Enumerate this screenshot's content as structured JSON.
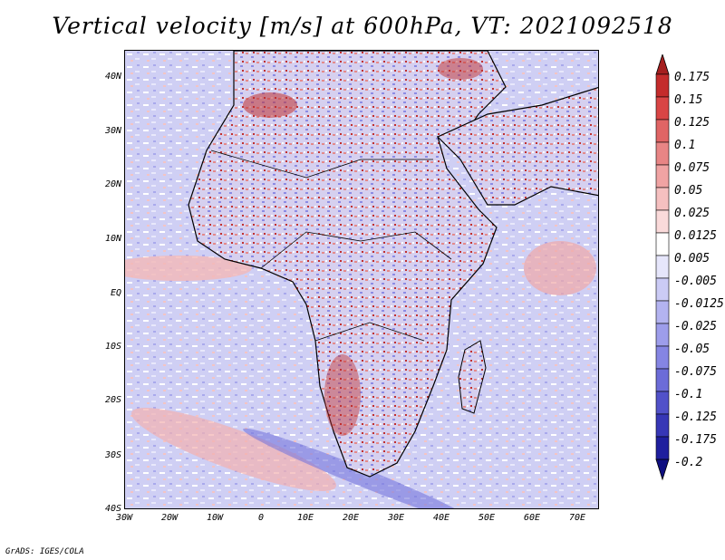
{
  "title": "Vertical velocity [m/s] at 600hPa, VT: 2021092518",
  "credit": "GrADS: IGES/COLA",
  "map": {
    "lat_labels": [
      "40N",
      "30N",
      "20N",
      "10N",
      "EQ",
      "10S",
      "20S",
      "30S",
      "40S"
    ],
    "lon_labels": [
      "30W",
      "20W",
      "10W",
      "0",
      "10E",
      "20E",
      "30E",
      "40E",
      "50E",
      "60E",
      "70E"
    ]
  },
  "colorbar": {
    "labels": [
      "0.175",
      "0.15",
      "0.125",
      "0.1",
      "0.075",
      "0.05",
      "0.025",
      "0.0125",
      "0.005",
      "-0.005",
      "-0.0125",
      "-0.025",
      "-0.05",
      "-0.075",
      "-0.1",
      "-0.125",
      "-0.175",
      "-0.2"
    ],
    "colors": [
      "#a51f1f",
      "#c42c2c",
      "#d94545",
      "#e06565",
      "#e88585",
      "#f0a3a3",
      "#f5c0c0",
      "#fadada",
      "#ffffff",
      "#e6e6fb",
      "#cbcbf5",
      "#b3b3f0",
      "#9d9deb",
      "#8585e3",
      "#6c6cd8",
      "#5151c9",
      "#3737b6",
      "#1f1f9e",
      "#0f0f80"
    ]
  }
}
